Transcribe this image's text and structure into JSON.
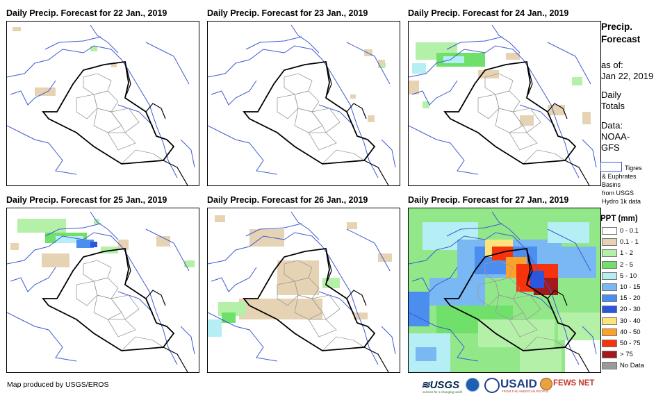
{
  "panels": [
    {
      "title": "Daily Precip. Forecast for 22 Jan., 2019"
    },
    {
      "title": "Daily Precip. Forecast for 23 Jan., 2019"
    },
    {
      "title": "Daily Precip. Forecast for 24 Jan., 2019"
    },
    {
      "title": "Daily Precip. Forecast for 25 Jan., 2019"
    },
    {
      "title": "Daily Precip. Forecast for 26 Jan., 2019"
    },
    {
      "title": "Daily Precip. Forecast for 27 Jan., 2019"
    }
  ],
  "legend": {
    "title_line1": "Precip.",
    "title_line2": "Forecast",
    "asof_line1": "as of:",
    "asof_line2": "Jan 22, 2019",
    "daily_line1": "Daily",
    "daily_line2": "Totals",
    "data_line1": "Data:",
    "data_line2": "NOAA-",
    "data_line3": "GFS",
    "basin_line1": "Tigres",
    "basin_line2": "& Euphrates",
    "basin_line3": "Basins",
    "basin_line4": "from USGS",
    "basin_line5": "Hydro 1k data",
    "ppt_title": "PPT (mm)",
    "classes": [
      {
        "label": "0 - 0.1",
        "color": "#ffffff"
      },
      {
        "label": "0.1 - 1",
        "color": "#e6d3b4"
      },
      {
        "label": "1 - 2",
        "color": "#b5f0a8"
      },
      {
        "label": "2 - 5",
        "color": "#6fe06a"
      },
      {
        "label": "5 - 10",
        "color": "#b5eef5"
      },
      {
        "label": "10 - 15",
        "color": "#79b8f2"
      },
      {
        "label": "15 - 20",
        "color": "#4c8ef0"
      },
      {
        "label": "20 - 30",
        "color": "#2a57dd"
      },
      {
        "label": "30 - 40",
        "color": "#fde37c"
      },
      {
        "label": "40 - 50",
        "color": "#fca12a"
      },
      {
        "label": "50 - 75",
        "color": "#f6330c"
      },
      {
        "label": "> 75",
        "color": "#a3191c"
      },
      {
        "label": "No Data",
        "color": "#9a9a9a"
      }
    ]
  },
  "footer": {
    "credit": "Map produced by USGS/EROS",
    "logo_usgs": "USGS",
    "logo_usgs_tagline": "science for a changing world",
    "logo_usaid": "USAID",
    "logo_usaid_tagline": "FROM THE AMERICAN PEOPLE",
    "logo_fews": "FEWS NET"
  }
}
